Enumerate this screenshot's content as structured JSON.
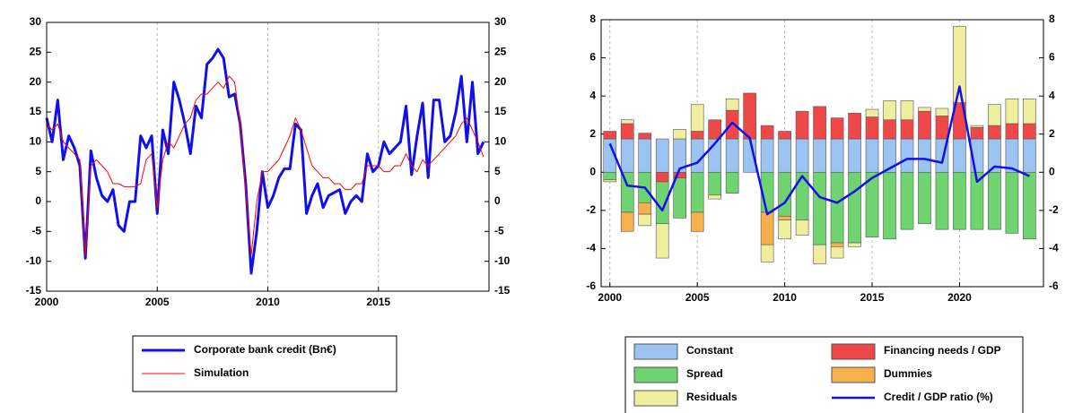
{
  "chart_data": [
    {
      "type": "line",
      "x": [
        2000,
        2000.25,
        2000.5,
        2000.75,
        2001,
        2001.25,
        2001.5,
        2001.75,
        2002,
        2002.25,
        2002.5,
        2002.75,
        2003,
        2003.25,
        2003.5,
        2003.75,
        2004,
        2004.25,
        2004.5,
        2004.75,
        2005,
        2005.25,
        2005.5,
        2005.75,
        2006,
        2006.25,
        2006.5,
        2006.75,
        2007,
        2007.25,
        2007.5,
        2007.75,
        2008,
        2008.25,
        2008.5,
        2008.75,
        2009,
        2009.25,
        2009.5,
        2009.75,
        2010,
        2010.25,
        2010.5,
        2010.75,
        2011,
        2011.25,
        2011.5,
        2011.75,
        2012,
        2012.25,
        2012.5,
        2012.75,
        2013,
        2013.25,
        2013.5,
        2013.75,
        2014,
        2014.25,
        2014.5,
        2014.75,
        2015,
        2015.25,
        2015.5,
        2015.75,
        2016,
        2016.25,
        2016.5,
        2016.75,
        2017,
        2017.25,
        2017.5,
        2017.75,
        2018,
        2018.25,
        2018.5,
        2018.75,
        2019,
        2019.25,
        2019.5,
        2019.75
      ],
      "series": [
        {
          "name": "Corporate bank credit (Bn€)",
          "color": "#1010ee",
          "width": 3,
          "values": [
            14,
            10,
            17,
            7,
            11,
            9,
            6,
            -9.5,
            8.5,
            4,
            1,
            0,
            2,
            -4,
            -5,
            0,
            0,
            11,
            9,
            11,
            -2,
            12,
            8,
            20,
            17,
            13,
            8,
            16,
            14,
            23,
            24,
            25.5,
            24,
            17.5,
            18,
            13,
            3,
            -12,
            -5,
            5,
            -1,
            1,
            4,
            5.5,
            5.5,
            13,
            12,
            -2,
            1,
            3,
            -1,
            1,
            1.5,
            2,
            -2,
            0,
            1,
            0,
            8,
            5,
            6,
            10,
            8,
            9,
            10,
            16,
            4.5,
            11,
            16.5,
            4,
            17,
            17,
            10,
            11,
            15,
            21,
            10,
            20,
            8,
            10
          ]
        },
        {
          "name": "Simulation",
          "color": "#ff0000",
          "width": 1,
          "values": [
            13,
            12,
            13,
            10,
            9,
            8,
            7,
            -9,
            6,
            7,
            6,
            5,
            3,
            3,
            2.5,
            2.5,
            2.5,
            3,
            7,
            8,
            -1,
            7,
            10,
            9,
            11,
            13,
            14,
            17,
            18,
            18,
            19,
            20,
            19,
            21,
            20,
            13,
            2,
            -9,
            0,
            5,
            5,
            6,
            7,
            9,
            11,
            14,
            12,
            9,
            6,
            5,
            4,
            4,
            3,
            3,
            2,
            2,
            3,
            3,
            6,
            6,
            6,
            5,
            5,
            6,
            6,
            8,
            6,
            5,
            7,
            6,
            7,
            8,
            9,
            10,
            11,
            13,
            14,
            12,
            10,
            7.5
          ]
        }
      ],
      "xlim": [
        2000,
        2020
      ],
      "xticks": [
        2000,
        2005,
        2010,
        2015
      ],
      "ylim": [
        -15,
        30
      ],
      "yticks": [
        -15,
        -10,
        -5,
        0,
        5,
        10,
        15,
        20,
        25,
        30
      ],
      "y2lim": [
        -15,
        30
      ],
      "y2ticks": [
        -15,
        -10,
        -5,
        0,
        5,
        10,
        15,
        20,
        25,
        30
      ],
      "grid": "x",
      "legend": "below"
    },
    {
      "type": "bar",
      "stacked": true,
      "x": [
        2000,
        2001,
        2002,
        2003,
        2004,
        2005,
        2006,
        2007,
        2008,
        2009,
        2010,
        2011,
        2012,
        2013,
        2014,
        2015,
        2016,
        2017,
        2018,
        2019,
        2020,
        2021,
        2022,
        2023,
        2024
      ],
      "series": [
        {
          "name": "Constant",
          "color": "#9cc3f2",
          "values": [
            1.75,
            1.75,
            1.75,
            1.75,
            1.75,
            1.75,
            1.75,
            1.75,
            1.75,
            1.75,
            1.75,
            1.75,
            1.75,
            1.75,
            1.75,
            1.75,
            1.75,
            1.75,
            1.75,
            1.75,
            1.75,
            1.75,
            1.75,
            1.75,
            1.75
          ]
        },
        {
          "name": "Financing needs / GDP",
          "color": "#f04848",
          "values": [
            0.4,
            0.8,
            0.3,
            -0.5,
            -0.3,
            0.4,
            1.0,
            1.5,
            2.4,
            0.7,
            0.4,
            1.45,
            1.7,
            1.1,
            1.35,
            1.15,
            1.0,
            1.0,
            1.45,
            1.2,
            1.9,
            0.6,
            0.7,
            0.8,
            0.8
          ]
        },
        {
          "name": "Spread",
          "color": "#6fd46f",
          "values": [
            -0.4,
            -2.1,
            -1.6,
            -2.2,
            -2.1,
            -2.1,
            -1.2,
            -1.1,
            0,
            -2.1,
            -2.3,
            -2.5,
            -3.8,
            -3.7,
            -3.7,
            -3.4,
            -3.5,
            -3.0,
            -2.7,
            -3.0,
            -3.0,
            -3.0,
            -3.0,
            -3.2,
            -3.5
          ]
        },
        {
          "name": "Dummies",
          "color": "#f6b04c",
          "values": [
            0,
            -1.0,
            -0.6,
            0,
            0,
            -1.0,
            0,
            0,
            0,
            -1.7,
            -0.2,
            0,
            0,
            -0.2,
            0,
            0,
            0,
            0,
            0,
            0,
            0,
            0,
            0,
            0,
            0
          ]
        },
        {
          "name": "Residuals",
          "color": "#eeee9e",
          "values": [
            -0.1,
            0.2,
            -0.6,
            -1.8,
            0.5,
            1.4,
            -0.2,
            0.6,
            0,
            -0.9,
            -1.0,
            -0.8,
            -1.0,
            -0.6,
            -0.2,
            0.4,
            1.0,
            1.0,
            0.2,
            0.4,
            4.0,
            0.1,
            1.1,
            1.3,
            1.3
          ]
        },
        {
          "name": "Credit / GDP ratio (%)",
          "type": "line",
          "color": "#1010ee",
          "width": 2.5,
          "values": [
            1.5,
            -0.7,
            -0.8,
            -2.0,
            0.2,
            0.5,
            1.5,
            2.6,
            1.8,
            -2.2,
            -1.6,
            -0.2,
            -1.3,
            -1.6,
            -1.0,
            -0.3,
            0.2,
            0.7,
            0.7,
            0.5,
            4.5,
            -0.5,
            0.3,
            0.2,
            -0.2
          ]
        }
      ],
      "xlim": [
        1999.5,
        2024.8
      ],
      "xticks": [
        2000,
        2005,
        2010,
        2015,
        2020
      ],
      "ylim": [
        -6,
        8
      ],
      "yticks": [
        -6,
        -4,
        -2,
        0,
        2,
        4,
        6,
        8
      ],
      "y2lim": [
        -6,
        8
      ],
      "y2ticks": [
        -6,
        -4,
        -2,
        0,
        2,
        4,
        6,
        8
      ],
      "grid": "x",
      "legend": "below"
    }
  ]
}
